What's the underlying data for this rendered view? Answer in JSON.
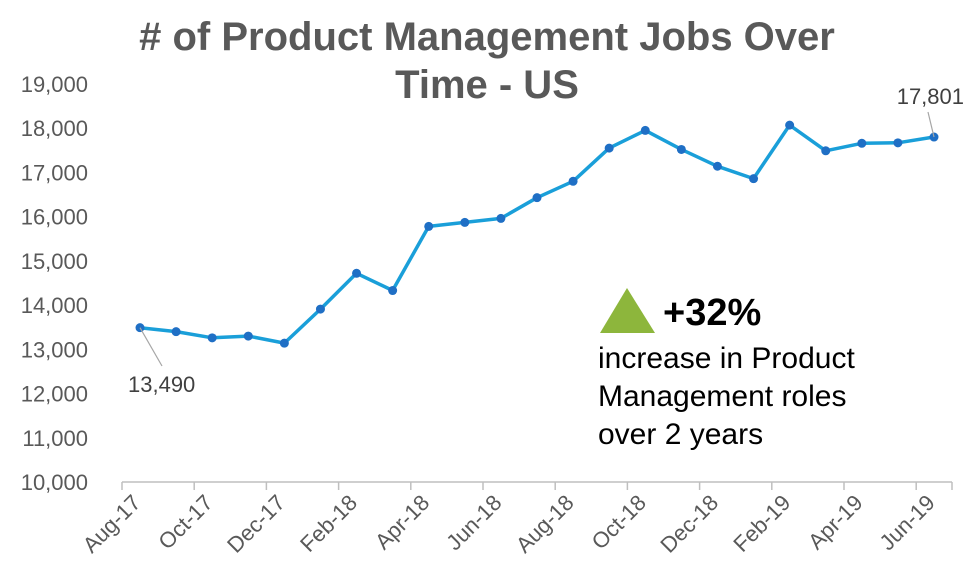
{
  "chart_data": {
    "type": "line",
    "title_lines": [
      "# of Product Management Jobs Over",
      "Time - US"
    ],
    "ylim": [
      10000,
      19000
    ],
    "yticks": [
      "10,000",
      "11,000",
      "12,000",
      "13,000",
      "14,000",
      "15,000",
      "16,000",
      "17,000",
      "18,000",
      "19,000"
    ],
    "xtick_labels": [
      "Aug-17",
      "Oct-17",
      "Dec-17",
      "Feb-18",
      "Apr-18",
      "Jun-18",
      "Aug-18",
      "Oct-18",
      "Dec-18",
      "Feb-19",
      "Apr-19",
      "Jun-19"
    ],
    "x": [
      "Aug-17",
      "Sep-17",
      "Oct-17",
      "Nov-17",
      "Dec-17",
      "Jan-18",
      "Feb-18",
      "Mar-18",
      "Apr-18",
      "May-18",
      "Jun-18",
      "Jul-18",
      "Aug-18",
      "Sep-18",
      "Oct-18",
      "Nov-18",
      "Dec-18",
      "Jan-19",
      "Feb-19",
      "Mar-19",
      "Apr-19",
      "May-19",
      "Jun-19"
    ],
    "series": [
      {
        "values": [
          13490,
          13400,
          13260,
          13300,
          13140,
          13910,
          14720,
          14330,
          15780,
          15870,
          15960,
          16430,
          16800,
          17550,
          17950,
          17520,
          17140,
          16860,
          18070,
          17490,
          17660,
          17670,
          17801
        ],
        "color": "#1a9fd9",
        "marker_color": "#1f6fc5"
      }
    ],
    "data_labels": [
      {
        "index": 0,
        "text": "13,490"
      },
      {
        "index": 22,
        "text": "17,801"
      }
    ],
    "annotation": {
      "big": "+32%",
      "lines": [
        "increase in Product",
        "Management roles",
        "over 2 years"
      ],
      "triangle_color": "#8db63c"
    },
    "grid": false
  }
}
